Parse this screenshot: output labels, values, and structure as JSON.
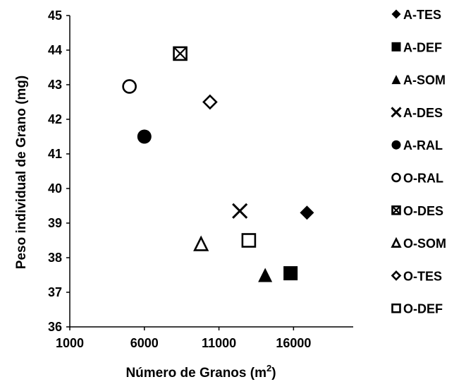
{
  "chart_data": {
    "type": "scatter",
    "title": "",
    "xlabel": "Número de Granos (m",
    "xlabel_superscript": "2",
    "xlabel_suffix": ")",
    "ylabel": "Peso individual de Grano (mg)",
    "xlim": [
      1000,
      20000
    ],
    "ylim": [
      36,
      45
    ],
    "x_ticks": [
      1000,
      6000,
      11000,
      16000
    ],
    "y_ticks": [
      36,
      37,
      38,
      39,
      40,
      41,
      42,
      43,
      44,
      45
    ],
    "grid": false,
    "legend_position": "right",
    "series": [
      {
        "name": "A-TES",
        "marker": "diamond-filled",
        "points": [
          {
            "x": 16900,
            "y": 39.3
          }
        ]
      },
      {
        "name": "A-DEF",
        "marker": "square-filled",
        "points": [
          {
            "x": 15800,
            "y": 37.55
          }
        ]
      },
      {
        "name": "A-SOM",
        "marker": "triangle-filled",
        "points": [
          {
            "x": 14100,
            "y": 37.5
          }
        ]
      },
      {
        "name": "A-DES",
        "marker": "x",
        "points": [
          {
            "x": 12400,
            "y": 39.35
          }
        ]
      },
      {
        "name": "A-RAL",
        "marker": "circle-filled",
        "points": [
          {
            "x": 6000,
            "y": 41.5
          }
        ]
      },
      {
        "name": "O-RAL",
        "marker": "circle-open",
        "points": [
          {
            "x": 5000,
            "y": 42.95
          }
        ]
      },
      {
        "name": "O-DES",
        "marker": "square-x",
        "points": [
          {
            "x": 8400,
            "y": 43.9
          }
        ]
      },
      {
        "name": "O-SOM",
        "marker": "triangle-open",
        "points": [
          {
            "x": 9800,
            "y": 38.4
          }
        ]
      },
      {
        "name": "O-TES",
        "marker": "diamond-open",
        "points": [
          {
            "x": 10400,
            "y": 42.5
          }
        ]
      },
      {
        "name": "O-DEF",
        "marker": "square-open",
        "points": [
          {
            "x": 13000,
            "y": 38.5
          }
        ]
      }
    ]
  }
}
